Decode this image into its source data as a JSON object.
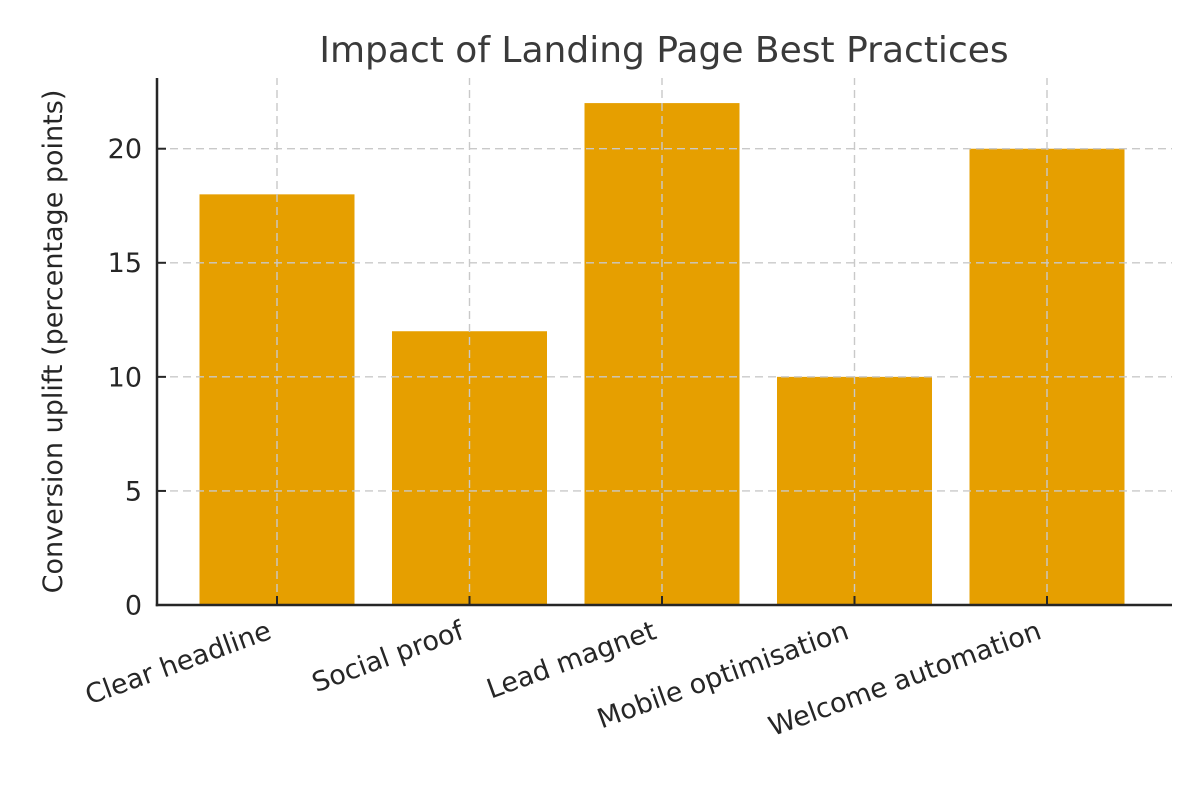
{
  "chart_data": {
    "type": "bar",
    "title": "Impact of Landing Page Best Practices",
    "xlabel": "",
    "ylabel": "Conversion uplift (percentage points)",
    "categories": [
      "Clear headline",
      "Social proof",
      "Lead magnet",
      "Mobile optimisation",
      "Welcome automation"
    ],
    "values": [
      18,
      12,
      22,
      10,
      20
    ],
    "ylim": [
      0,
      23.1
    ],
    "yticks": [
      0,
      5,
      10,
      15,
      20
    ],
    "grid": "dashed grid on both axes, drawn above bars",
    "legend": "none",
    "xtick_rotation_deg": -20,
    "bar_color": "#E69F00",
    "grid_color": "#C9C9C9",
    "axis_color": "#262626",
    "title_color": "#3A3A3A",
    "tick_label_color": "#262626"
  }
}
